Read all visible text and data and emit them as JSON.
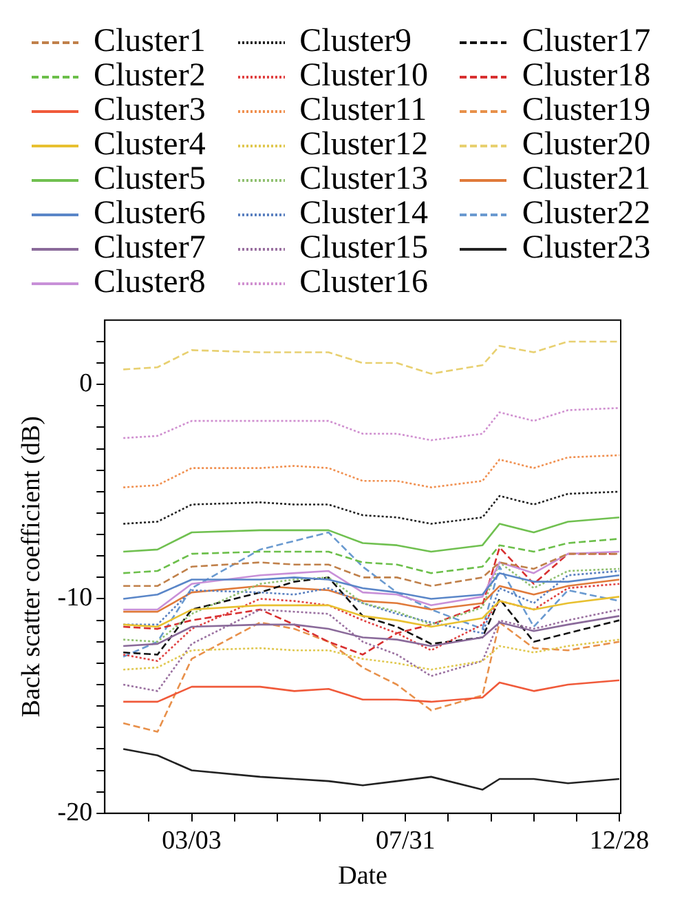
{
  "chart_data": {
    "type": "line",
    "xlabel": "Date",
    "ylabel": "Back scatter coefficient (dB)",
    "legend": "top",
    "grid": false,
    "x": [
      "--01-14",
      "--02-07",
      "--03-03",
      "--04-20",
      "--05-14",
      "--06-07",
      "--07-01",
      "--07-25",
      "--08-18",
      "--09-23",
      "--10-05",
      "--10-29",
      "--11-22",
      "--12-28"
    ],
    "xlim": [
      "--01-01",
      "--12-29"
    ],
    "xticks": [
      {
        "value": "--02-01",
        "label": null
      },
      {
        "value": "--03-03",
        "label": "03/03"
      },
      {
        "value": "--04-02",
        "label": null
      },
      {
        "value": "--05-02",
        "label": null
      },
      {
        "value": "--06-01",
        "label": null
      },
      {
        "value": "--07-01",
        "label": null
      },
      {
        "value": "--07-31",
        "label": "07/31"
      },
      {
        "value": "--08-30",
        "label": null
      },
      {
        "value": "--09-29",
        "label": null
      },
      {
        "value": "--10-29",
        "label": null
      },
      {
        "value": "--11-28",
        "label": null
      },
      {
        "value": "--12-28",
        "label": "12/28"
      }
    ],
    "ylim": [
      -20,
      3
    ],
    "yticks": [
      -20,
      {
        "value": -19,
        "label": null
      },
      {
        "value": -18,
        "label": null
      },
      {
        "value": -17,
        "label": null
      },
      {
        "value": -16,
        "label": null
      },
      {
        "value": -15,
        "label": null
      },
      {
        "value": -14,
        "label": null
      },
      {
        "value": -13,
        "label": null
      },
      {
        "value": -12,
        "label": null
      },
      {
        "value": -11,
        "label": null
      },
      -10,
      {
        "value": -9,
        "label": null
      },
      {
        "value": -8,
        "label": null
      },
      {
        "value": -7,
        "label": null
      },
      {
        "value": -6,
        "label": null
      },
      {
        "value": -5,
        "label": null
      },
      {
        "value": -4,
        "label": null
      },
      {
        "value": -3,
        "label": null
      },
      {
        "value": -2,
        "label": null
      },
      {
        "value": -1,
        "label": null
      },
      0,
      {
        "value": 1,
        "label": null
      },
      {
        "value": 2,
        "label": null
      }
    ],
    "series": [
      {
        "name": "Cluster1",
        "color": "#c0804a",
        "line_style": "dashed",
        "values": [
          -9.4,
          -9.4,
          -8.5,
          -8.3,
          -8.4,
          -8.4,
          -9.0,
          -9.0,
          -9.4,
          -9.0,
          -8.3,
          -8.6,
          -7.9,
          -7.9
        ]
      },
      {
        "name": "Cluster2",
        "color": "#6cbf4a",
        "line_style": "dashed",
        "values": [
          -8.8,
          -8.7,
          -7.9,
          -7.8,
          -7.8,
          -7.8,
          -8.3,
          -8.4,
          -8.8,
          -8.5,
          -7.5,
          -7.8,
          -7.4,
          -7.2
        ]
      },
      {
        "name": "Cluster3",
        "color": "#f05a3a",
        "line_style": "solid",
        "values": [
          -14.8,
          -14.8,
          -14.1,
          -14.1,
          -14.3,
          -14.2,
          -14.7,
          -14.7,
          -14.8,
          -14.6,
          -13.9,
          -14.3,
          -14.0,
          -13.8
        ]
      },
      {
        "name": "Cluster4",
        "color": "#e8c030",
        "line_style": "solid",
        "values": [
          -11.2,
          -11.3,
          -10.5,
          -10.3,
          -10.3,
          -10.3,
          -10.8,
          -11.0,
          -11.3,
          -10.9,
          -10.1,
          -10.5,
          -10.2,
          -9.9
        ]
      },
      {
        "name": "Cluster5",
        "color": "#70c050",
        "line_style": "solid",
        "values": [
          -7.8,
          -7.7,
          -6.9,
          -6.8,
          -6.8,
          -6.8,
          -7.4,
          -7.5,
          -7.8,
          -7.5,
          -6.5,
          -6.9,
          -6.4,
          -6.2
        ]
      },
      {
        "name": "Cluster6",
        "color": "#5a86c8",
        "line_style": "solid",
        "values": [
          -10.0,
          -9.8,
          -9.1,
          -9.1,
          -9.0,
          -9.1,
          -9.5,
          -9.7,
          -10.0,
          -9.8,
          -8.8,
          -9.2,
          -9.2,
          -8.9
        ]
      },
      {
        "name": "Cluster7",
        "color": "#8a6a9a",
        "line_style": "solid",
        "values": [
          -12.2,
          -12.1,
          -11.3,
          -11.2,
          -11.2,
          -11.4,
          -11.8,
          -11.9,
          -12.2,
          -11.8,
          -11.1,
          -11.5,
          -11.2,
          -10.8
        ]
      },
      {
        "name": "Cluster8",
        "color": "#c890d8",
        "line_style": "solid",
        "values": [
          -10.5,
          -10.5,
          -9.3,
          -8.9,
          -8.8,
          -8.7,
          -9.7,
          -9.8,
          -10.3,
          -9.9,
          -8.3,
          -8.8,
          -7.9,
          -7.8
        ]
      },
      {
        "name": "Cluster9",
        "color": "#202020",
        "line_style": "dotted",
        "values": [
          -6.5,
          -6.4,
          -5.6,
          -5.5,
          -5.6,
          -5.6,
          -6.1,
          -6.2,
          -6.5,
          -6.2,
          -5.2,
          -5.6,
          -5.1,
          -5.0
        ]
      },
      {
        "name": "Cluster10",
        "color": "#e04040",
        "line_style": "dotted",
        "values": [
          -12.6,
          -12.9,
          -11.4,
          -10.0,
          -10.1,
          -10.3,
          -11.0,
          -11.6,
          -12.4,
          -11.2,
          -10.1,
          -10.5,
          -9.5,
          -9.3
        ]
      },
      {
        "name": "Cluster11",
        "color": "#f09050",
        "line_style": "dotted",
        "values": [
          -4.8,
          -4.7,
          -3.9,
          -3.9,
          -3.8,
          -3.9,
          -4.5,
          -4.5,
          -4.8,
          -4.5,
          -3.5,
          -3.9,
          -3.4,
          -3.3
        ]
      },
      {
        "name": "Cluster12",
        "color": "#e0c850",
        "line_style": "dotted",
        "values": [
          -13.3,
          -13.2,
          -12.4,
          -12.3,
          -12.4,
          -12.4,
          -12.8,
          -13.0,
          -13.3,
          -12.9,
          -12.2,
          -12.5,
          -12.2,
          -11.9
        ]
      },
      {
        "name": "Cluster13",
        "color": "#90c070",
        "line_style": "dotted",
        "values": [
          -11.9,
          -12.0,
          -10.7,
          -9.3,
          -9.1,
          -9.0,
          -10.2,
          -10.6,
          -11.2,
          -10.4,
          -8.3,
          -9.5,
          -8.7,
          -8.6
        ]
      },
      {
        "name": "Cluster14",
        "color": "#5a80c0",
        "line_style": "dotted",
        "values": [
          -11.2,
          -11.2,
          -9.6,
          -9.7,
          -9.8,
          -9.5,
          -10.2,
          -10.7,
          -11.1,
          -11.6,
          -9.5,
          -10.2,
          -8.9,
          -8.7
        ]
      },
      {
        "name": "Cluster15",
        "color": "#9a70a0",
        "line_style": "dotted",
        "values": [
          -14.0,
          -14.3,
          -12.1,
          -10.5,
          -10.6,
          -10.7,
          -12.0,
          -12.6,
          -13.6,
          -12.9,
          -11.0,
          -11.4,
          -11.0,
          -10.5
        ]
      },
      {
        "name": "Cluster16",
        "color": "#d090d0",
        "line_style": "dotted",
        "values": [
          -2.5,
          -2.4,
          -1.7,
          -1.7,
          -1.7,
          -1.7,
          -2.3,
          -2.3,
          -2.6,
          -2.3,
          -1.3,
          -1.7,
          -1.2,
          -1.1
        ]
      },
      {
        "name": "Cluster17",
        "color": "#111111",
        "line_style": "dashed",
        "values": [
          -12.5,
          -12.6,
          -10.5,
          -9.7,
          -9.2,
          -9.0,
          -10.8,
          -11.3,
          -12.1,
          -11.8,
          -10.0,
          -12.0,
          -11.6,
          -11.0
        ]
      },
      {
        "name": "Cluster18",
        "color": "#d83030",
        "line_style": "dashed",
        "values": [
          -11.3,
          -11.4,
          -11.0,
          -10.5,
          -11.2,
          -12.0,
          -12.6,
          -11.6,
          -11.2,
          -10.3,
          -7.6,
          -9.3,
          -7.9,
          -7.9
        ]
      },
      {
        "name": "Cluster19",
        "color": "#e8904a",
        "line_style": "dashed",
        "values": [
          -15.8,
          -16.2,
          -12.8,
          -11.1,
          -11.4,
          -12.0,
          -13.2,
          -14.0,
          -15.2,
          -14.5,
          -11.1,
          -12.3,
          -12.4,
          -12.0
        ]
      },
      {
        "name": "Cluster20",
        "color": "#e8d070",
        "line_style": "dashed",
        "values": [
          0.7,
          0.8,
          1.6,
          1.5,
          1.5,
          1.5,
          1.0,
          1.0,
          0.5,
          0.9,
          1.8,
          1.5,
          2.0,
          2.0
        ]
      },
      {
        "name": "Cluster21",
        "color": "#e07a3a",
        "line_style": "solid",
        "values": [
          -10.6,
          -10.6,
          -9.7,
          -9.4,
          -9.5,
          -9.6,
          -10.1,
          -10.2,
          -10.5,
          -10.2,
          -9.4,
          -9.8,
          -9.4,
          -9.1
        ]
      },
      {
        "name": "Cluster22",
        "color": "#6a9ad0",
        "line_style": "dashed",
        "values": [
          -12.7,
          -12.0,
          -9.5,
          -7.7,
          -7.3,
          -6.9,
          -8.5,
          -9.7,
          -10.5,
          -11.4,
          -8.5,
          -11.3,
          -9.6,
          -10.1
        ]
      },
      {
        "name": "Cluster23",
        "color": "#222222",
        "line_style": "solid",
        "values": [
          -17.0,
          -17.3,
          -18.0,
          -18.3,
          -18.4,
          -18.5,
          -18.7,
          -18.5,
          -18.3,
          -18.9,
          -18.4,
          -18.4,
          -18.6,
          -18.4
        ]
      }
    ]
  }
}
